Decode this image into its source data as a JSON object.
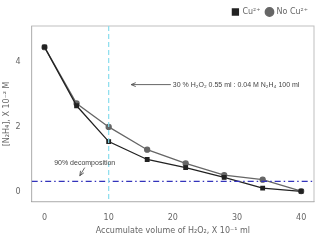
{
  "chart_data": {
    "type": "line",
    "x": [
      0,
      5,
      10,
      16,
      22,
      28,
      34,
      40
    ],
    "series": [
      {
        "name": "Cu²⁺",
        "color": "#222222",
        "marker": "square",
        "values": [
          4.45,
          2.65,
          1.55,
          1.0,
          0.75,
          0.45,
          0.12,
          0.02
        ]
      },
      {
        "name": "No Cu²⁺",
        "color": "#666666",
        "marker": "circle",
        "values": [
          4.45,
          2.72,
          2.0,
          1.3,
          0.88,
          0.52,
          0.38,
          0.03
        ]
      }
    ],
    "x_label": "Accumulate volume of H₂O₂, X 10⁻¹ ml",
    "y_label": "[N₂H₄], X 10⁻² M",
    "xlim": [
      -2,
      42
    ],
    "ylim": [
      -0.3,
      5.1
    ],
    "xticks": [
      0,
      10,
      20,
      30,
      40
    ],
    "yticks": [
      0,
      2,
      4
    ],
    "grid": false,
    "legend": "upper right",
    "reference_lines": [
      {
        "axis": "y",
        "value": 0.33,
        "color": "#3333bb",
        "line_style": "dashdot"
      },
      {
        "axis": "x",
        "value": 10,
        "color": "#88ddee",
        "line_style": "dashed"
      }
    ],
    "annotations": [
      {
        "text": "30 % H₂O₂ 0.55 ml : 0.04 M N₂H₄ 100 ml",
        "xy": [
          13.5,
          3.3
        ],
        "xytext": [
          20,
          3.3
        ]
      },
      {
        "text": "90% decomposition",
        "xy": [
          5.5,
          0.5
        ],
        "xytext": [
          1.5,
          0.78
        ]
      }
    ]
  }
}
